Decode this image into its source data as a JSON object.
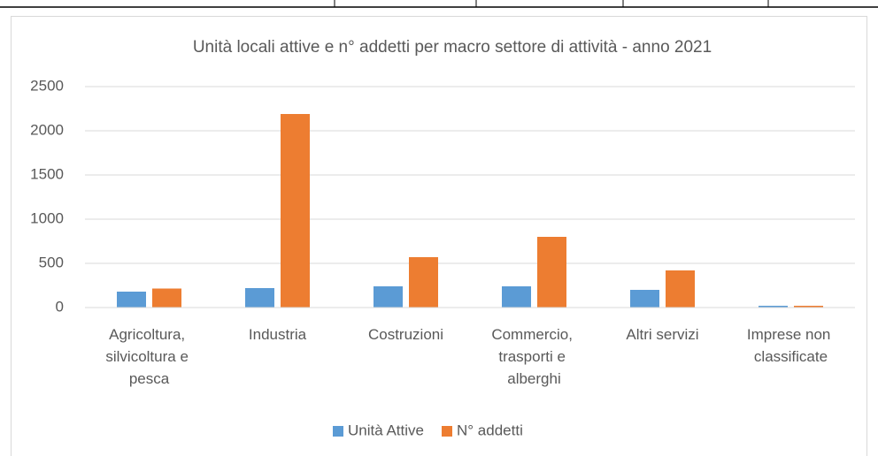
{
  "chart_data": {
    "type": "bar",
    "title": "Unità locali attive e n° addetti per macro settore di attività - anno 2021",
    "categories": [
      "Agricoltura, silvicoltura e pesca",
      "Industria",
      "Costruzioni",
      "Commercio, trasporti e alberghi",
      "Altri servizi",
      "Imprese non classificate"
    ],
    "series": [
      {
        "name": "Unità Attive",
        "color": "#5b9bd5",
        "values": [
          180,
          220,
          240,
          240,
          200,
          20
        ]
      },
      {
        "name": "N° addetti",
        "color": "#ed7d31",
        "values": [
          215,
          2190,
          570,
          800,
          420,
          20
        ]
      }
    ],
    "ylim": [
      0,
      2500
    ],
    "yticks": [
      0,
      500,
      1000,
      1500,
      2000,
      2500
    ],
    "grid": true,
    "legend": "bottom"
  }
}
